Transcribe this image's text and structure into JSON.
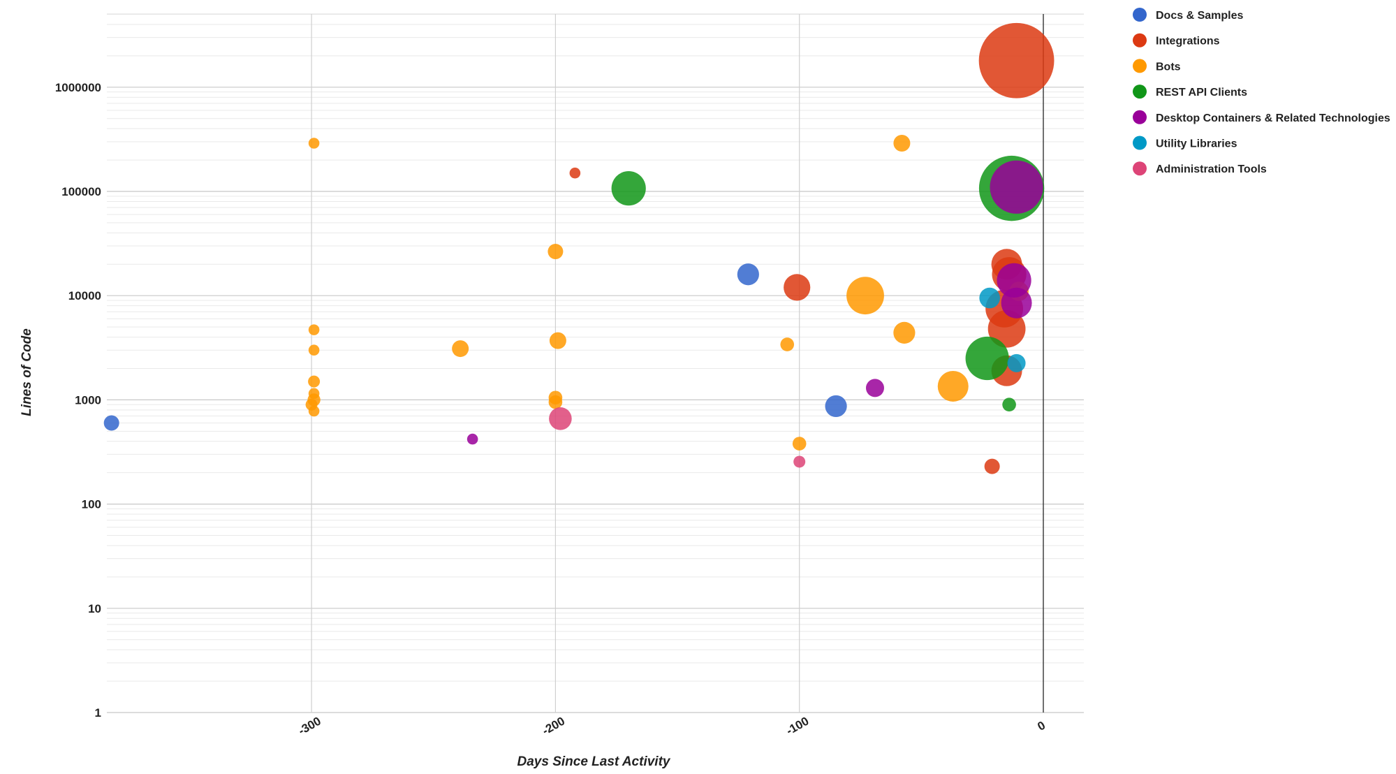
{
  "chart_data": {
    "type": "scatter",
    "subtype": "bubble",
    "title": "",
    "xlabel": "Days Since Last Activity",
    "ylabel": "Lines of Code",
    "xlim": [
      -388,
      16
    ],
    "ylim": [
      1,
      10000000
    ],
    "yscale": "log",
    "xticks": [
      -300,
      -200,
      -100,
      0
    ],
    "yticks": [
      1,
      10,
      100,
      1000,
      10000,
      100000,
      1000000
    ],
    "xtick_labels": [
      "-300",
      "-200",
      "-100",
      "0"
    ],
    "ytick_labels": [
      "1",
      "10",
      "100",
      "1000",
      "10000",
      "100000",
      "1000000"
    ],
    "grid": true,
    "legend_position": "right",
    "series": [
      {
        "name": "Docs & Samples",
        "color": "#3366cc",
        "points": [
          {
            "x": -382,
            "y": 600,
            "size": 1
          },
          {
            "x": -121,
            "y": 16000,
            "size": 2
          },
          {
            "x": -85,
            "y": 870,
            "size": 2
          }
        ]
      },
      {
        "name": "Integrations",
        "color": "#dc3912",
        "points": [
          {
            "x": -11,
            "y": 1800000,
            "size": 24
          },
          {
            "x": -192,
            "y": 150000,
            "size": 0.5
          },
          {
            "x": -101,
            "y": 12000,
            "size": 3
          },
          {
            "x": -15,
            "y": 20000,
            "size": 4
          },
          {
            "x": -14,
            "y": 16000,
            "size": 5
          },
          {
            "x": -16,
            "y": 7500,
            "size": 6
          },
          {
            "x": -15,
            "y": 4800,
            "size": 6
          },
          {
            "x": -15,
            "y": 1900,
            "size": 4
          },
          {
            "x": -21,
            "y": 230,
            "size": 1
          }
        ]
      },
      {
        "name": "Bots",
        "color": "#ff9900",
        "points": [
          {
            "x": -299,
            "y": 290000,
            "size": 0.5
          },
          {
            "x": -299,
            "y": 4700,
            "size": 0.5
          },
          {
            "x": -299,
            "y": 3000,
            "size": 0.5
          },
          {
            "x": -299,
            "y": 1500,
            "size": 0.6
          },
          {
            "x": -299,
            "y": 1150,
            "size": 0.5
          },
          {
            "x": -299,
            "y": 1000,
            "size": 0.7
          },
          {
            "x": -300,
            "y": 900,
            "size": 0.6
          },
          {
            "x": -299,
            "y": 780,
            "size": 0.5
          },
          {
            "x": -239,
            "y": 3100,
            "size": 1.2
          },
          {
            "x": -200,
            "y": 26500,
            "size": 1
          },
          {
            "x": -199,
            "y": 3700,
            "size": 1.2
          },
          {
            "x": -200,
            "y": 1050,
            "size": 0.8
          },
          {
            "x": -200,
            "y": 950,
            "size": 0.8
          },
          {
            "x": -105,
            "y": 3400,
            "size": 0.8
          },
          {
            "x": -100,
            "y": 380,
            "size": 0.8
          },
          {
            "x": -58,
            "y": 290000,
            "size": 1.2
          },
          {
            "x": -73,
            "y": 10000,
            "size": 6
          },
          {
            "x": -57,
            "y": 4400,
            "size": 2
          },
          {
            "x": -37,
            "y": 1350,
            "size": 4
          },
          {
            "x": -10,
            "y": 11000,
            "size": 1.6
          }
        ]
      },
      {
        "name": "REST API Clients",
        "color": "#109618",
        "points": [
          {
            "x": -170,
            "y": 107000,
            "size": 5
          },
          {
            "x": -13,
            "y": 107000,
            "size": 18
          },
          {
            "x": -23,
            "y": 2500,
            "size": 8
          },
          {
            "x": -14,
            "y": 900,
            "size": 0.8
          }
        ]
      },
      {
        "name": "Desktop Containers & Related Technologies",
        "color": "#990099",
        "points": [
          {
            "x": -11,
            "y": 110000,
            "size": 12
          },
          {
            "x": -12,
            "y": 14000,
            "size": 5
          },
          {
            "x": -11,
            "y": 8500,
            "size": 4
          },
          {
            "x": -69,
            "y": 1300,
            "size": 1.4
          },
          {
            "x": -234,
            "y": 420,
            "size": 0.5
          }
        ]
      },
      {
        "name": "Utility Libraries",
        "color": "#0099c6",
        "points": [
          {
            "x": -22,
            "y": 9500,
            "size": 1.8
          },
          {
            "x": -11,
            "y": 2250,
            "size": 1.4
          }
        ]
      },
      {
        "name": "Administration Tools",
        "color": "#dd4477",
        "points": [
          {
            "x": -198,
            "y": 660,
            "size": 2.2
          },
          {
            "x": -100,
            "y": 255,
            "size": 0.6
          }
        ]
      }
    ]
  }
}
